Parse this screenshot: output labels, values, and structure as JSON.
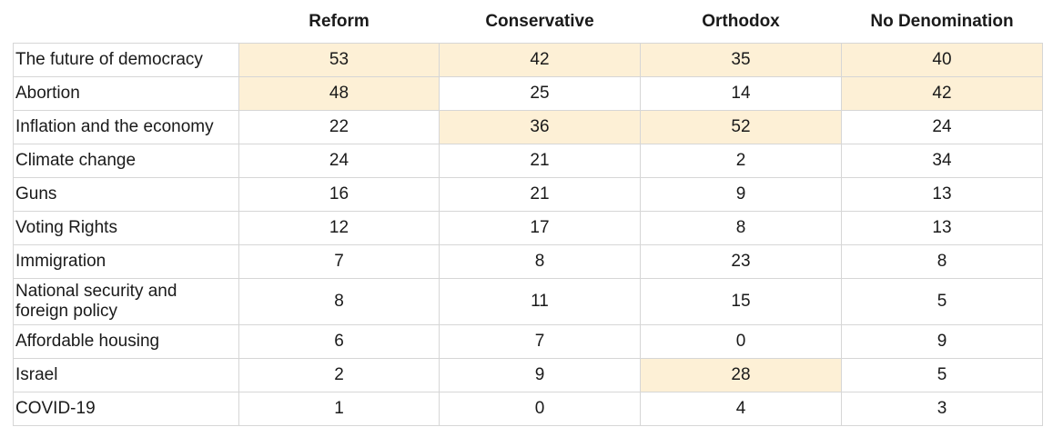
{
  "colors": {
    "highlight": "#fdf0d6",
    "grid": "#d6d6d6",
    "text": "#1a1a1a"
  },
  "chart_data": {
    "type": "table",
    "columns": [
      "",
      "Reform",
      "Conservative",
      "Orthodox",
      "No Denomination"
    ],
    "rows": [
      {
        "label": "The future of democracy",
        "values": [
          53,
          42,
          35,
          40
        ],
        "highlight": [
          true,
          true,
          true,
          true
        ]
      },
      {
        "label": "Abortion",
        "values": [
          48,
          25,
          14,
          42
        ],
        "highlight": [
          true,
          false,
          false,
          true
        ]
      },
      {
        "label": "Inflation and the economy",
        "values": [
          22,
          36,
          52,
          24
        ],
        "highlight": [
          false,
          true,
          true,
          false
        ]
      },
      {
        "label": "Climate change",
        "values": [
          24,
          21,
          2,
          34
        ],
        "highlight": [
          false,
          false,
          false,
          false
        ]
      },
      {
        "label": "Guns",
        "values": [
          16,
          21,
          9,
          13
        ],
        "highlight": [
          false,
          false,
          false,
          false
        ]
      },
      {
        "label": "Voting Rights",
        "values": [
          12,
          17,
          8,
          13
        ],
        "highlight": [
          false,
          false,
          false,
          false
        ]
      },
      {
        "label": "Immigration",
        "values": [
          7,
          8,
          23,
          8
        ],
        "highlight": [
          false,
          false,
          false,
          false
        ]
      },
      {
        "label": "National security and foreign policy",
        "values": [
          8,
          11,
          15,
          5
        ],
        "highlight": [
          false,
          false,
          false,
          false
        ],
        "tall": true
      },
      {
        "label": "Affordable housing",
        "values": [
          6,
          7,
          0,
          9
        ],
        "highlight": [
          false,
          false,
          false,
          false
        ]
      },
      {
        "label": "Israel",
        "values": [
          2,
          9,
          28,
          5
        ],
        "highlight": [
          false,
          false,
          true,
          false
        ]
      },
      {
        "label": "COVID-19",
        "values": [
          1,
          0,
          4,
          3
        ],
        "highlight": [
          false,
          false,
          false,
          false
        ]
      }
    ]
  }
}
